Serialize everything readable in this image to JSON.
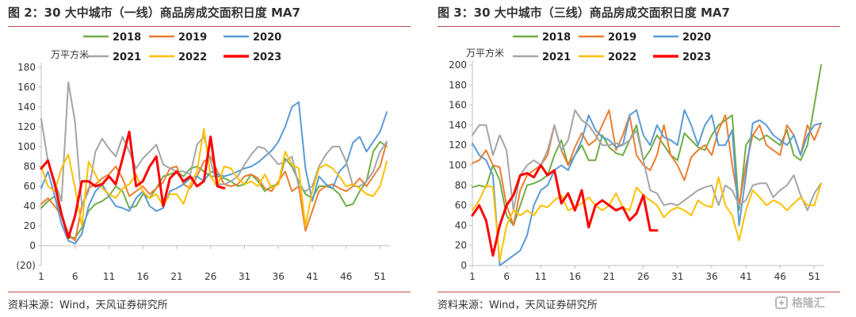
{
  "source_text": "资料来源：Wind，天风证券研究所",
  "watermark": {
    "text": "格隆汇",
    "icon": "gelonghui-logo-icon",
    "color": "#b8b8b8"
  },
  "colors": {
    "rule": "#c0504d",
    "axis": "#bfbfbf",
    "tick_text": "#333333"
  },
  "chart_data": [
    {
      "type": "line",
      "title": "图 2：30 大中城市（一线）商品房成交面积日度 MA7",
      "unit": "万平方米",
      "ylim": [
        -20,
        180
      ],
      "yticks": [
        -20,
        0,
        20,
        40,
        60,
        80,
        100,
        120,
        140,
        160,
        180
      ],
      "ytick_labels": [
        "(20)",
        "0",
        "20",
        "40",
        "60",
        "80",
        "100",
        "120",
        "140",
        "160",
        "180"
      ],
      "xlim": [
        1,
        52
      ],
      "xticks": [
        1,
        6,
        11,
        16,
        21,
        26,
        31,
        36,
        41,
        46,
        51
      ],
      "grid": false,
      "legend_position": "top",
      "series": [
        {
          "name": "2018",
          "color": "#70ad47",
          "width": 2,
          "values": [
            38,
            45,
            50,
            30,
            8,
            8,
            18,
            35,
            42,
            45,
            50,
            60,
            55,
            38,
            40,
            52,
            48,
            58,
            70,
            72,
            75,
            70,
            78,
            80,
            75,
            70,
            70,
            68,
            65,
            60,
            62,
            72,
            65,
            55,
            60,
            62,
            88,
            80,
            65,
            52,
            48,
            60,
            60,
            58,
            52,
            40,
            42,
            55,
            65,
            95,
            105,
            100
          ]
        },
        {
          "name": "2019",
          "color": "#ed7d31",
          "width": 2,
          "values": [
            42,
            48,
            40,
            30,
            12,
            5,
            40,
            58,
            62,
            68,
            72,
            80,
            68,
            50,
            55,
            60,
            52,
            58,
            64,
            78,
            80,
            62,
            58,
            70,
            85,
            90,
            75,
            62,
            60,
            62,
            70,
            72,
            68,
            58,
            55,
            65,
            75,
            55,
            60,
            15,
            35,
            55,
            60,
            62,
            58,
            55,
            60,
            68,
            60,
            70,
            80,
            105
          ]
        },
        {
          "name": "2020",
          "color": "#5b9bd5",
          "width": 2,
          "values": [
            58,
            75,
            50,
            22,
            5,
            2,
            12,
            40,
            55,
            62,
            50,
            40,
            38,
            35,
            48,
            55,
            40,
            35,
            38,
            55,
            58,
            62,
            68,
            70,
            65,
            75,
            72,
            70,
            72,
            75,
            78,
            80,
            84,
            90,
            96,
            105,
            120,
            140,
            145,
            78,
            45,
            70,
            62,
            58,
            75,
            82,
            104,
            110,
            95,
            105,
            115,
            135
          ]
        },
        {
          "name": "2021",
          "color": "#a5a5a5",
          "width": 2,
          "values": [
            128,
            85,
            65,
            45,
            165,
            125,
            40,
            55,
            95,
            108,
            98,
            90,
            110,
            95,
            78,
            88,
            95,
            102,
            82,
            78,
            75,
            75,
            72,
            102,
            110,
            85,
            62,
            62,
            65,
            70,
            82,
            92,
            100,
            98,
            90,
            82,
            85,
            90,
            60,
            55,
            60,
            80,
            92,
            100,
            100,
            85,
            60,
            60,
            65,
            75,
            95,
            105
          ]
        },
        {
          "name": "2022",
          "color": "#ffc000",
          "width": 2,
          "values": [
            80,
            60,
            55,
            78,
            92,
            58,
            20,
            85,
            72,
            58,
            52,
            48,
            58,
            62,
            72,
            55,
            48,
            52,
            40,
            52,
            52,
            42,
            62,
            75,
            118,
            70,
            60,
            80,
            78,
            68,
            62,
            65,
            60,
            72,
            58,
            62,
            95,
            82,
            78,
            20,
            55,
            78,
            82,
            78,
            70,
            60,
            62,
            58,
            52,
            50,
            60,
            85
          ]
        },
        {
          "name": "2023",
          "color": "#ff0000",
          "width": 3,
          "values": [
            78,
            86,
            62,
            32,
            8,
            30,
            65,
            65,
            60,
            62,
            70,
            62,
            88,
            115,
            60,
            65,
            80,
            90,
            40,
            68,
            75,
            65,
            70,
            60,
            65,
            110,
            60,
            58
          ]
        }
      ]
    },
    {
      "type": "line",
      "title": "图 3：30 大中城市（三线）商品房成交面积日度 MA7",
      "unit": "万平方米",
      "ylim": [
        0,
        200
      ],
      "yticks": [
        0,
        20,
        40,
        60,
        80,
        100,
        120,
        140,
        160,
        180,
        200
      ],
      "ytick_labels": [
        "0",
        "20",
        "40",
        "60",
        "80",
        "100",
        "120",
        "140",
        "160",
        "180",
        "200"
      ],
      "xlim": [
        1,
        52
      ],
      "xticks": [
        1,
        6,
        11,
        16,
        21,
        26,
        31,
        36,
        41,
        46,
        51
      ],
      "grid": false,
      "legend_position": "top",
      "series": [
        {
          "name": "2018",
          "color": "#70ad47",
          "width": 2,
          "values": [
            78,
            80,
            78,
            100,
            85,
            50,
            40,
            60,
            80,
            82,
            85,
            90,
            110,
            125,
            100,
            110,
            120,
            105,
            105,
            130,
            118,
            112,
            110,
            125,
            140,
            105,
            115,
            130,
            120,
            110,
            105,
            132,
            125,
            118,
            115,
            130,
            140,
            145,
            150,
            55,
            120,
            130,
            125,
            130,
            125,
            120,
            135,
            110,
            105,
            120,
            160,
            200
          ]
        },
        {
          "name": "2019",
          "color": "#ed7d31",
          "width": 2,
          "values": [
            102,
            105,
            115,
            100,
            98,
            60,
            40,
            75,
            90,
            95,
            100,
            110,
            140,
            115,
            100,
            118,
            132,
            120,
            125,
            140,
            155,
            115,
            130,
            150,
            110,
            100,
            95,
            110,
            140,
            110,
            100,
            85,
            108,
            115,
            120,
            110,
            135,
            150,
            100,
            60,
            100,
            130,
            140,
            120,
            115,
            110,
            140,
            130,
            110,
            140,
            125,
            142
          ]
        },
        {
          "name": "2020",
          "color": "#5b9bd5",
          "width": 2,
          "values": [
            122,
            110,
            105,
            90,
            0,
            5,
            10,
            15,
            30,
            60,
            75,
            80,
            95,
            100,
            95,
            110,
            125,
            150,
            135,
            128,
            125,
            118,
            120,
            150,
            155,
            130,
            120,
            140,
            128,
            125,
            120,
            155,
            140,
            120,
            140,
            150,
            120,
            120,
            135,
            40,
            90,
            142,
            145,
            140,
            130,
            125,
            120,
            130,
            110,
            130,
            140,
            142
          ]
        },
        {
          "name": "2021",
          "color": "#a5a5a5",
          "width": 2,
          "values": [
            130,
            140,
            140,
            110,
            130,
            115,
            55,
            90,
            100,
            105,
            100,
            115,
            140,
            115,
            125,
            155,
            145,
            140,
            130,
            120,
            120,
            122,
            120,
            125,
            135,
            105,
            75,
            72,
            60,
            62,
            60,
            65,
            70,
            75,
            78,
            80,
            60,
            80,
            75,
            60,
            65,
            80,
            82,
            82,
            68,
            75,
            80,
            90,
            70,
            55,
            72,
            82
          ]
        },
        {
          "name": "2022",
          "color": "#ffc000",
          "width": 2,
          "values": [
            55,
            65,
            80,
            78,
            5,
            40,
            55,
            50,
            55,
            50,
            60,
            58,
            65,
            70,
            55,
            58,
            62,
            68,
            60,
            55,
            60,
            72,
            58,
            55,
            78,
            70,
            65,
            60,
            48,
            55,
            58,
            55,
            50,
            65,
            60,
            58,
            88,
            60,
            50,
            25,
            55,
            75,
            68,
            60,
            65,
            62,
            55,
            62,
            68,
            60,
            60,
            82
          ]
        },
        {
          "name": "2023",
          "color": "#ff0000",
          "width": 3,
          "values": [
            50,
            60,
            45,
            10,
            40,
            60,
            70,
            90,
            92,
            88,
            100,
            90,
            95,
            62,
            72,
            55,
            75,
            38,
            60,
            65,
            60,
            55,
            58,
            45,
            52,
            70,
            35,
            35
          ]
        }
      ]
    }
  ]
}
